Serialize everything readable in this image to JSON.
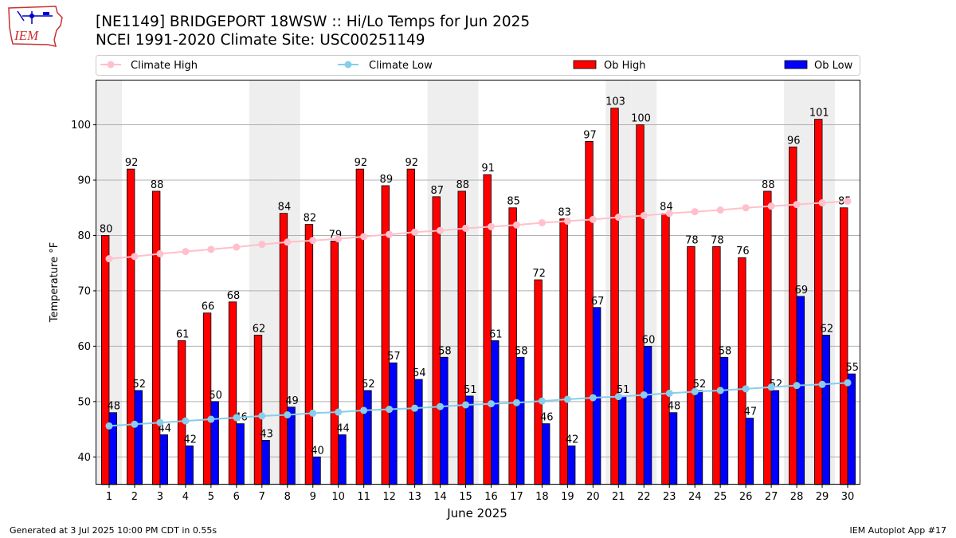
{
  "header": {
    "title_line1": "[NE1149] BRIDGEPORT 18WSW :: Hi/Lo Temps for Jun 2025",
    "title_line2": "NCEI 1991-2020 Climate Site: USC00251149",
    "logo_text": "IEM"
  },
  "footer": {
    "generated": "Generated at 3 Jul 2025 10:00 PM CDT in 0.55s",
    "app": "IEM Autoplot App #17"
  },
  "colors": {
    "ob_high": "#ff0000",
    "ob_low": "#0000ff",
    "climate_high": "#ffc0cb",
    "climate_low": "#87ceeb",
    "weekend_band": "#eeeeee"
  },
  "chart_data": {
    "type": "bar",
    "xlabel": "June 2025",
    "ylabel": "Temperature °F",
    "ylim": [
      35,
      108
    ],
    "yticks": [
      40,
      50,
      60,
      70,
      80,
      90,
      100
    ],
    "grid": true,
    "legend_position": "top",
    "categories": [
      "1",
      "2",
      "3",
      "4",
      "5",
      "6",
      "7",
      "8",
      "9",
      "10",
      "11",
      "12",
      "13",
      "14",
      "15",
      "16",
      "17",
      "18",
      "19",
      "20",
      "21",
      "22",
      "23",
      "24",
      "25",
      "26",
      "27",
      "28",
      "29",
      "30"
    ],
    "weekend_days": [
      1,
      7,
      8,
      14,
      15,
      21,
      22,
      28,
      29
    ],
    "legend": [
      "Climate High",
      "Climate Low",
      "Ob High",
      "Ob Low"
    ],
    "series": [
      {
        "name": "Ob High",
        "kind": "bar",
        "values": [
          80,
          92,
          88,
          61,
          66,
          68,
          62,
          84,
          82,
          79,
          92,
          89,
          92,
          87,
          88,
          91,
          85,
          72,
          83,
          97,
          103,
          100,
          84,
          78,
          78,
          76,
          88,
          96,
          101,
          85
        ]
      },
      {
        "name": "Ob Low",
        "kind": "bar",
        "values": [
          48,
          52,
          44,
          42,
          50,
          46,
          43,
          49,
          40,
          44,
          52,
          57,
          54,
          58,
          51,
          61,
          58,
          46,
          42,
          67,
          51,
          60,
          48,
          52,
          58,
          47,
          52,
          69,
          62,
          55
        ]
      },
      {
        "name": "Climate High",
        "kind": "line",
        "values": [
          75.8,
          76.2,
          76.7,
          77.1,
          77.5,
          77.9,
          78.4,
          78.8,
          79.1,
          79.4,
          79.8,
          80.2,
          80.6,
          80.9,
          81.3,
          81.6,
          81.9,
          82.3,
          82.6,
          82.9,
          83.3,
          83.6,
          84.0,
          84.3,
          84.6,
          85.0,
          85.3,
          85.6,
          85.9,
          86.2
        ]
      },
      {
        "name": "Climate Low",
        "kind": "line",
        "values": [
          45.6,
          45.9,
          46.2,
          46.5,
          46.8,
          47.1,
          47.4,
          47.6,
          47.9,
          48.1,
          48.4,
          48.6,
          48.8,
          49.1,
          49.4,
          49.6,
          49.8,
          50.1,
          50.4,
          50.7,
          50.9,
          51.2,
          51.5,
          51.8,
          52.0,
          52.3,
          52.6,
          52.9,
          53.1,
          53.4
        ]
      }
    ]
  }
}
